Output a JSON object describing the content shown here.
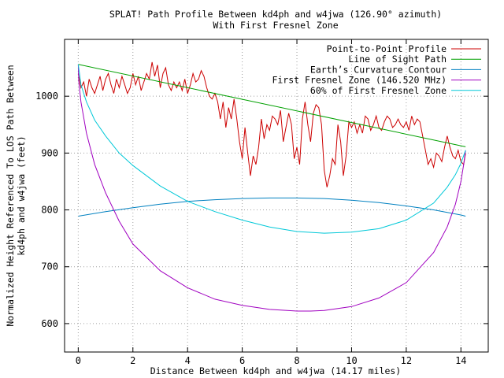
{
  "chart_data": {
    "type": "line",
    "title": "SPLAT! Path Profile Between kd4ph and w4jwa (126.90° azimuth)",
    "subtitle": "With First Fresnel Zone",
    "xlabel": "Distance Between kd4ph and w4jwa (14.17 miles)",
    "ylabel": "Normalized Height Referenced To LOS Path Between kd4ph and w4jwa (feet)",
    "xlim": [
      -0.5,
      15
    ],
    "ylim": [
      550,
      1100
    ],
    "x_ticks": [
      "0",
      "2",
      "4",
      "6",
      "8",
      "10",
      "12",
      "14"
    ],
    "y_ticks": [
      "600",
      "700",
      "800",
      "900",
      "1000"
    ],
    "grid": true,
    "legend_position": "top-right",
    "series": [
      {
        "name": "Point-to-Point Profile",
        "color": "#cc0000",
        "x": [
          0,
          0.1,
          0.2,
          0.3,
          0.4,
          0.5,
          0.6,
          0.7,
          0.8,
          0.9,
          1.0,
          1.1,
          1.2,
          1.3,
          1.4,
          1.5,
          1.6,
          1.7,
          1.8,
          1.9,
          2.0,
          2.1,
          2.2,
          2.3,
          2.4,
          2.5,
          2.6,
          2.7,
          2.8,
          2.9,
          3.0,
          3.1,
          3.2,
          3.3,
          3.4,
          3.5,
          3.6,
          3.7,
          3.8,
          3.9,
          4.0,
          4.1,
          4.2,
          4.3,
          4.4,
          4.5,
          4.6,
          4.7,
          4.8,
          4.9,
          5.0,
          5.1,
          5.2,
          5.3,
          5.4,
          5.5,
          5.6,
          5.7,
          5.8,
          5.9,
          6.0,
          6.1,
          6.2,
          6.3,
          6.4,
          6.5,
          6.6,
          6.7,
          6.8,
          6.9,
          7.0,
          7.1,
          7.2,
          7.3,
          7.4,
          7.5,
          7.6,
          7.7,
          7.8,
          7.9,
          8.0,
          8.1,
          8.2,
          8.3,
          8.4,
          8.5,
          8.6,
          8.7,
          8.8,
          8.9,
          9.0,
          9.1,
          9.2,
          9.3,
          9.4,
          9.5,
          9.6,
          9.7,
          9.8,
          9.9,
          10.0,
          10.1,
          10.2,
          10.3,
          10.4,
          10.5,
          10.6,
          10.7,
          10.8,
          10.9,
          11.0,
          11.1,
          11.2,
          11.3,
          11.4,
          11.5,
          11.6,
          11.7,
          11.8,
          11.9,
          12.0,
          12.1,
          12.2,
          12.3,
          12.4,
          12.5,
          12.6,
          12.7,
          12.8,
          12.9,
          13.0,
          13.1,
          13.2,
          13.3,
          13.4,
          13.5,
          13.6,
          13.7,
          13.8,
          13.9,
          14.0,
          14.1,
          14.17
        ],
        "values": [
          1040,
          1015,
          1025,
          1000,
          1030,
          1015,
          1005,
          1020,
          1035,
          1010,
          1030,
          1040,
          1020,
          1005,
          1030,
          1015,
          1035,
          1020,
          1005,
          1015,
          1040,
          1020,
          1035,
          1010,
          1025,
          1040,
          1030,
          1060,
          1035,
          1055,
          1015,
          1040,
          1050,
          1020,
          1010,
          1025,
          1015,
          1025,
          1010,
          1030,
          1005,
          1020,
          1040,
          1025,
          1030,
          1045,
          1035,
          1015,
          1000,
          995,
          1005,
          990,
          960,
          990,
          945,
          980,
          960,
          995,
          960,
          920,
          890,
          945,
          900,
          860,
          895,
          880,
          910,
          960,
          925,
          950,
          940,
          965,
          960,
          950,
          975,
          920,
          945,
          970,
          950,
          890,
          910,
          880,
          960,
          990,
          950,
          920,
          970,
          985,
          980,
          950,
          870,
          840,
          860,
          890,
          880,
          950,
          920,
          860,
          895,
          955,
          945,
          955,
          935,
          950,
          935,
          965,
          960,
          940,
          950,
          965,
          945,
          940,
          955,
          965,
          960,
          945,
          950,
          960,
          950,
          945,
          955,
          940,
          965,
          950,
          960,
          955,
          930,
          905,
          880,
          890,
          875,
          900,
          895,
          885,
          910,
          930,
          910,
          895,
          890,
          905,
          885,
          880,
          900
        ]
      },
      {
        "name": "Line of Sight Path",
        "color": "#00a000",
        "x": [
          0,
          14.17
        ],
        "values": [
          1056,
          911
        ]
      },
      {
        "name": "Earth’s Curvature Contour",
        "color": "#0080c0",
        "x": [
          0,
          1,
          2,
          3,
          4,
          5,
          6,
          7,
          8,
          9,
          10,
          11,
          12,
          13,
          14,
          14.17
        ],
        "values": [
          789,
          797,
          804,
          810,
          815,
          818,
          820,
          821,
          821,
          820,
          817,
          813,
          807,
          800,
          791,
          789
        ]
      },
      {
        "name": "First Fresnel Zone (146.520 MHz)",
        "color": "#a000c0",
        "x": [
          0,
          0.02,
          0.1,
          0.3,
          0.6,
          1,
          1.5,
          2,
          3,
          4,
          5,
          6,
          7,
          8,
          8.5,
          9,
          10,
          11,
          12,
          13,
          13.5,
          13.8,
          14,
          14.1,
          14.17
        ],
        "values": [
          1056,
          1026,
          990,
          935,
          880,
          830,
          780,
          740,
          693,
          663,
          643,
          632,
          625,
          622,
          622,
          623,
          630,
          645,
          672,
          725,
          770,
          810,
          850,
          880,
          905
        ]
      },
      {
        "name": "60% of First Fresnel Zone",
        "color": "#00c8d8",
        "x": [
          0,
          0.1,
          0.3,
          0.6,
          1,
          1.5,
          2,
          3,
          4,
          5,
          6,
          7,
          8,
          9,
          10,
          11,
          12,
          13,
          13.5,
          13.8,
          14,
          14.17
        ],
        "values": [
          1056,
          1020,
          990,
          958,
          930,
          900,
          878,
          842,
          815,
          797,
          782,
          770,
          762,
          759,
          761,
          767,
          782,
          812,
          840,
          862,
          882,
          905
        ]
      }
    ]
  }
}
